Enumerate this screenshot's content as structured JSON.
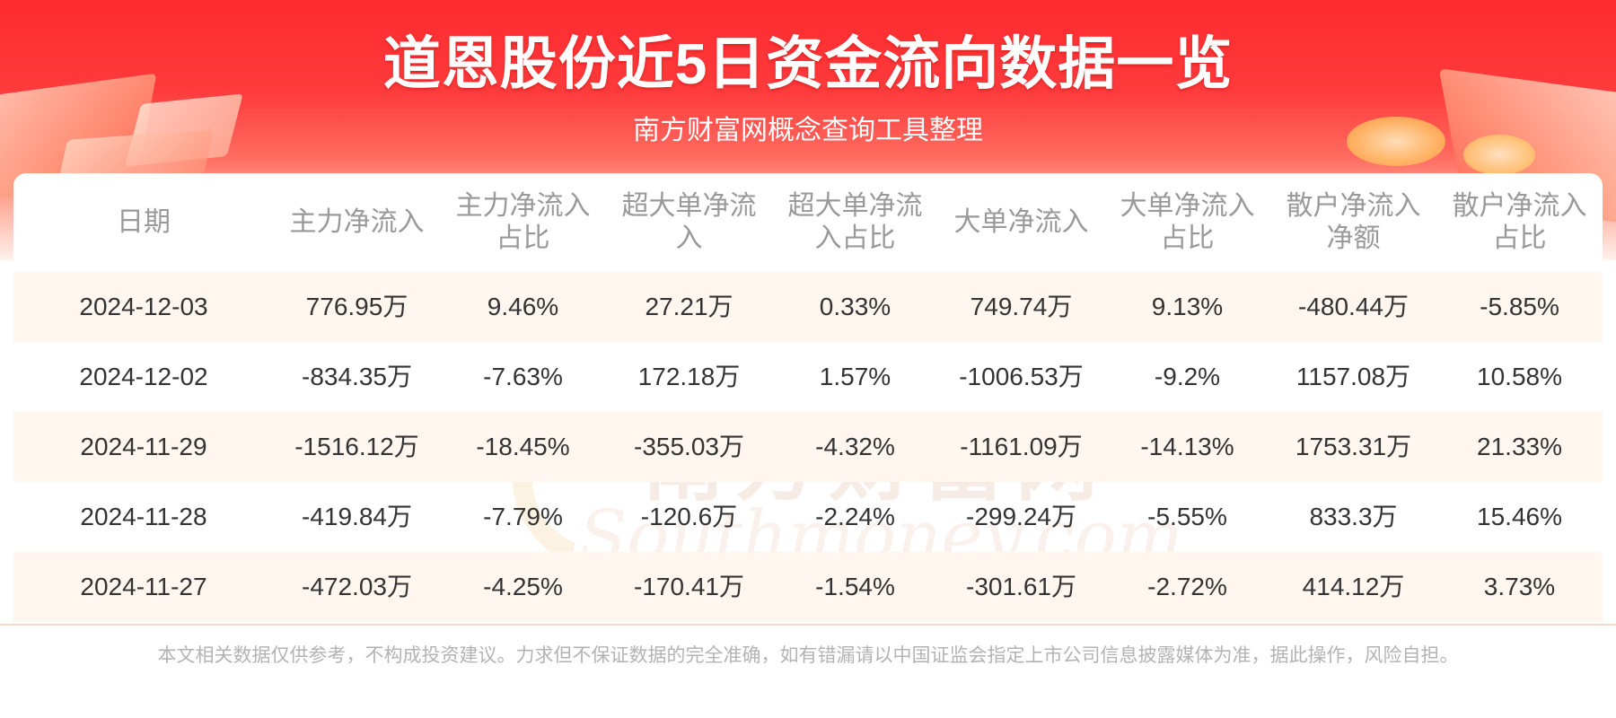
{
  "title": "道恩股份近5日资金流向数据一览",
  "subtitle": "南方财富网概念查询工具整理",
  "watermark": {
    "cn": "南方财富网",
    "en": "Southmoney.com"
  },
  "table": {
    "headers": [
      [
        "日期"
      ],
      [
        "主力净流入"
      ],
      [
        "主力净流入",
        "占比"
      ],
      [
        "超大单净流",
        "入"
      ],
      [
        "超大单净流",
        "入占比"
      ],
      [
        "大单净流入"
      ],
      [
        "大单净流入",
        "占比"
      ],
      [
        "散户净流入",
        "净额"
      ],
      [
        "散户净流入",
        "占比"
      ]
    ],
    "rows": [
      [
        "2024-12-03",
        "776.95万",
        "9.46%",
        "27.21万",
        "0.33%",
        "749.74万",
        "9.13%",
        "-480.44万",
        "-5.85%"
      ],
      [
        "2024-12-02",
        "-834.35万",
        "-7.63%",
        "172.18万",
        "1.57%",
        "-1006.53万",
        "-9.2%",
        "1157.08万",
        "10.58%"
      ],
      [
        "2024-11-29",
        "-1516.12万",
        "-18.45%",
        "-355.03万",
        "-4.32%",
        "-1161.09万",
        "-14.13%",
        "1753.31万",
        "21.33%"
      ],
      [
        "2024-11-28",
        "-419.84万",
        "-7.79%",
        "-120.6万",
        "-2.24%",
        "-299.24万",
        "-5.55%",
        "833.3万",
        "15.46%"
      ],
      [
        "2024-11-27",
        "-472.03万",
        "-4.25%",
        "-170.41万",
        "-1.54%",
        "-301.61万",
        "-2.72%",
        "414.12万",
        "3.73%"
      ]
    ]
  },
  "disclaimer": "本文相关数据仅供参考，不构成投资建议。力求但不保证数据的完全准确，如有错漏请以中国证监会指定上市公司信息披露媒体为准，据此操作，风险自担。",
  "colors": {
    "banner_red": "#fe2a2f",
    "row_alt": "#fff6ef",
    "header_text": "#999999",
    "cell_text": "#333333"
  }
}
